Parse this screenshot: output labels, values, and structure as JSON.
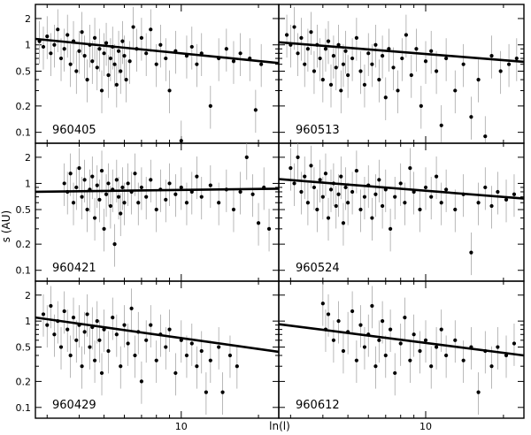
{
  "chart_data": [
    {
      "type": "scatter",
      "panel_label": "960405",
      "x_log": true,
      "y_log": true,
      "xlim": [
        2.7,
        24
      ],
      "ylim": [
        0.075,
        2.9
      ],
      "fit_line": {
        "x": [
          2.7,
          24
        ],
        "y": [
          1.17,
          0.62
        ]
      },
      "points": [
        [
          2.8,
          1.1
        ],
        [
          2.9,
          0.95
        ],
        [
          3.0,
          1.25
        ],
        [
          3.1,
          0.8
        ],
        [
          3.2,
          1.0
        ],
        [
          3.3,
          1.5
        ],
        [
          3.4,
          0.7
        ],
        [
          3.5,
          0.9
        ],
        [
          3.6,
          1.3
        ],
        [
          3.7,
          0.6
        ],
        [
          3.8,
          1.1
        ],
        [
          3.9,
          0.5
        ],
        [
          4.0,
          0.85
        ],
        [
          4.1,
          1.4
        ],
        [
          4.2,
          0.75
        ],
        [
          4.3,
          0.4
        ],
        [
          4.4,
          1.0
        ],
        [
          4.5,
          0.65
        ],
        [
          4.6,
          1.2
        ],
        [
          4.7,
          0.55
        ],
        [
          4.8,
          0.9
        ],
        [
          4.9,
          0.3
        ],
        [
          5.0,
          0.8
        ],
        [
          5.1,
          1.05
        ],
        [
          5.2,
          0.45
        ],
        [
          5.3,
          0.7
        ],
        [
          5.4,
          0.95
        ],
        [
          5.5,
          0.6
        ],
        [
          5.6,
          0.35
        ],
        [
          5.7,
          0.85
        ],
        [
          5.8,
          0.5
        ],
        [
          5.9,
          1.1
        ],
        [
          6.0,
          0.75
        ],
        [
          6.1,
          0.4
        ],
        [
          6.3,
          0.65
        ],
        [
          6.5,
          1.6
        ],
        [
          6.7,
          0.9
        ],
        [
          7.0,
          1.2
        ],
        [
          7.3,
          0.8
        ],
        [
          7.6,
          1.5
        ],
        [
          8.0,
          0.6
        ],
        [
          8.3,
          1.0
        ],
        [
          8.7,
          0.7
        ],
        [
          9.0,
          0.3
        ],
        [
          9.5,
          0.85
        ],
        [
          10.0,
          0.08
        ],
        [
          10.5,
          0.75
        ],
        [
          11.0,
          0.95
        ],
        [
          11.5,
          0.6
        ],
        [
          12.0,
          0.8
        ],
        [
          13.0,
          0.2
        ],
        [
          14.0,
          0.7
        ],
        [
          15.0,
          0.9
        ],
        [
          16.0,
          0.65
        ],
        [
          17.0,
          0.8
        ],
        [
          18.5,
          0.7
        ],
        [
          19.5,
          0.18
        ],
        [
          20.5,
          0.6
        ]
      ]
    },
    {
      "type": "scatter",
      "panel_label": "960513",
      "x_log": true,
      "y_log": true,
      "xlim": [
        2.7,
        24
      ],
      "ylim": [
        0.075,
        2.9
      ],
      "fit_line": {
        "x": [
          2.7,
          24
        ],
        "y": [
          1.07,
          0.64
        ]
      },
      "points": [
        [
          2.9,
          1.3
        ],
        [
          3.0,
          1.0
        ],
        [
          3.1,
          1.6
        ],
        [
          3.2,
          0.8
        ],
        [
          3.3,
          1.2
        ],
        [
          3.4,
          0.6
        ],
        [
          3.5,
          0.9
        ],
        [
          3.6,
          1.4
        ],
        [
          3.7,
          0.5
        ],
        [
          3.8,
          1.0
        ],
        [
          3.9,
          0.7
        ],
        [
          4.0,
          0.4
        ],
        [
          4.1,
          0.9
        ],
        [
          4.2,
          1.1
        ],
        [
          4.3,
          0.35
        ],
        [
          4.4,
          0.75
        ],
        [
          4.5,
          0.55
        ],
        [
          4.6,
          1.0
        ],
        [
          4.7,
          0.3
        ],
        [
          4.8,
          0.6
        ],
        [
          4.9,
          0.85
        ],
        [
          5.0,
          0.45
        ],
        [
          5.2,
          0.7
        ],
        [
          5.4,
          1.2
        ],
        [
          5.6,
          0.5
        ],
        [
          5.8,
          0.35
        ],
        [
          6.0,
          0.8
        ],
        [
          6.2,
          0.6
        ],
        [
          6.4,
          1.0
        ],
        [
          6.6,
          0.4
        ],
        [
          6.8,
          0.75
        ],
        [
          7.0,
          0.25
        ],
        [
          7.2,
          0.9
        ],
        [
          7.5,
          0.55
        ],
        [
          7.8,
          0.3
        ],
        [
          8.1,
          0.7
        ],
        [
          8.4,
          1.3
        ],
        [
          8.8,
          0.45
        ],
        [
          9.2,
          0.9
        ],
        [
          9.6,
          0.2
        ],
        [
          10.0,
          0.65
        ],
        [
          10.5,
          0.85
        ],
        [
          11.0,
          0.5
        ],
        [
          11.5,
          0.12
        ],
        [
          12.0,
          0.7
        ],
        [
          13.0,
          0.3
        ],
        [
          14.0,
          0.6
        ],
        [
          15.0,
          0.15
        ],
        [
          16.0,
          0.4
        ],
        [
          17.0,
          0.09
        ],
        [
          18.0,
          0.75
        ],
        [
          19.5,
          0.5
        ],
        [
          21.0,
          0.6
        ],
        [
          22.5,
          0.7
        ]
      ]
    },
    {
      "type": "scatter",
      "panel_label": "960421",
      "x_log": true,
      "y_log": true,
      "xlim": [
        2.7,
        24
      ],
      "ylim": [
        0.075,
        2.9
      ],
      "fit_line": {
        "x": [
          2.7,
          24
        ],
        "y": [
          0.8,
          0.87
        ]
      },
      "points": [
        [
          3.5,
          1.0
        ],
        [
          3.6,
          0.8
        ],
        [
          3.7,
          1.3
        ],
        [
          3.8,
          0.6
        ],
        [
          3.9,
          0.9
        ],
        [
          4.0,
          1.5
        ],
        [
          4.1,
          0.7
        ],
        [
          4.2,
          1.1
        ],
        [
          4.3,
          0.5
        ],
        [
          4.4,
          0.85
        ],
        [
          4.5,
          1.2
        ],
        [
          4.6,
          0.4
        ],
        [
          4.7,
          0.95
        ],
        [
          4.8,
          0.65
        ],
        [
          4.9,
          1.4
        ],
        [
          5.0,
          0.3
        ],
        [
          5.1,
          0.75
        ],
        [
          5.2,
          1.0
        ],
        [
          5.3,
          0.55
        ],
        [
          5.4,
          0.85
        ],
        [
          5.5,
          0.2
        ],
        [
          5.6,
          1.1
        ],
        [
          5.7,
          0.7
        ],
        [
          5.8,
          0.45
        ],
        [
          5.9,
          0.9
        ],
        [
          6.0,
          0.6
        ],
        [
          6.2,
          1.0
        ],
        [
          6.4,
          0.8
        ],
        [
          6.6,
          1.3
        ],
        [
          6.8,
          0.6
        ],
        [
          7.0,
          0.9
        ],
        [
          7.3,
          0.7
        ],
        [
          7.6,
          1.1
        ],
        [
          8.0,
          0.5
        ],
        [
          8.3,
          0.85
        ],
        [
          8.7,
          0.65
        ],
        [
          9.0,
          1.0
        ],
        [
          9.5,
          0.75
        ],
        [
          10.0,
          0.9
        ],
        [
          10.5,
          0.6
        ],
        [
          11.0,
          0.8
        ],
        [
          11.5,
          1.2
        ],
        [
          12.0,
          0.7
        ],
        [
          13.0,
          0.95
        ],
        [
          14.0,
          0.6
        ],
        [
          15.0,
          0.85
        ],
        [
          16.0,
          0.5
        ],
        [
          17.0,
          0.8
        ],
        [
          18.0,
          2.0
        ],
        [
          19.0,
          0.75
        ],
        [
          20.0,
          0.35
        ],
        [
          21.0,
          0.9
        ],
        [
          22.0,
          0.3
        ]
      ]
    },
    {
      "type": "scatter",
      "panel_label": "960524",
      "x_log": true,
      "y_log": true,
      "xlim": [
        2.7,
        24
      ],
      "ylim": [
        0.075,
        2.9
      ],
      "fit_line": {
        "x": [
          2.7,
          24
        ],
        "y": [
          1.12,
          0.67
        ]
      },
      "points": [
        [
          3.0,
          1.5
        ],
        [
          3.1,
          1.0
        ],
        [
          3.2,
          2.0
        ],
        [
          3.3,
          0.8
        ],
        [
          3.4,
          1.2
        ],
        [
          3.5,
          0.6
        ],
        [
          3.6,
          1.6
        ],
        [
          3.7,
          0.9
        ],
        [
          3.8,
          0.5
        ],
        [
          3.9,
          1.1
        ],
        [
          4.0,
          0.7
        ],
        [
          4.1,
          1.3
        ],
        [
          4.2,
          0.4
        ],
        [
          4.3,
          0.85
        ],
        [
          4.4,
          1.0
        ],
        [
          4.5,
          0.55
        ],
        [
          4.6,
          0.75
        ],
        [
          4.7,
          1.2
        ],
        [
          4.8,
          0.35
        ],
        [
          4.9,
          0.9
        ],
        [
          5.0,
          0.6
        ],
        [
          5.2,
          0.8
        ],
        [
          5.4,
          1.4
        ],
        [
          5.6,
          0.5
        ],
        [
          5.8,
          0.7
        ],
        [
          6.0,
          0.95
        ],
        [
          6.2,
          0.4
        ],
        [
          6.4,
          0.75
        ],
        [
          6.6,
          1.1
        ],
        [
          6.8,
          0.55
        ],
        [
          7.0,
          0.85
        ],
        [
          7.3,
          0.3
        ],
        [
          7.6,
          0.7
        ],
        [
          8.0,
          1.0
        ],
        [
          8.3,
          0.6
        ],
        [
          8.7,
          1.5
        ],
        [
          9.0,
          0.8
        ],
        [
          9.5,
          0.5
        ],
        [
          10.0,
          0.9
        ],
        [
          10.5,
          0.7
        ],
        [
          11.0,
          1.2
        ],
        [
          11.5,
          0.6
        ],
        [
          12.0,
          0.85
        ],
        [
          13.0,
          0.5
        ],
        [
          14.0,
          0.75
        ],
        [
          15.0,
          0.16
        ],
        [
          16.0,
          0.6
        ],
        [
          17.0,
          0.9
        ],
        [
          18.0,
          0.55
        ],
        [
          19.0,
          0.8
        ],
        [
          20.5,
          0.65
        ],
        [
          22.0,
          0.75
        ]
      ]
    },
    {
      "type": "scatter",
      "panel_label": "960429",
      "x_log": true,
      "y_log": true,
      "xlim": [
        2.7,
        24
      ],
      "ylim": [
        0.075,
        2.9
      ],
      "fit_line": {
        "x": [
          2.7,
          24
        ],
        "y": [
          1.1,
          0.44
        ]
      },
      "points": [
        [
          2.9,
          1.2
        ],
        [
          3.0,
          0.9
        ],
        [
          3.1,
          1.5
        ],
        [
          3.2,
          0.7
        ],
        [
          3.3,
          1.0
        ],
        [
          3.4,
          0.5
        ],
        [
          3.5,
          1.3
        ],
        [
          3.6,
          0.8
        ],
        [
          3.7,
          0.4
        ],
        [
          3.8,
          1.1
        ],
        [
          3.9,
          0.6
        ],
        [
          4.0,
          0.9
        ],
        [
          4.1,
          0.3
        ],
        [
          4.2,
          0.75
        ],
        [
          4.3,
          1.2
        ],
        [
          4.4,
          0.5
        ],
        [
          4.5,
          0.85
        ],
        [
          4.6,
          0.35
        ],
        [
          4.7,
          1.0
        ],
        [
          4.8,
          0.6
        ],
        [
          4.9,
          0.25
        ],
        [
          5.0,
          0.8
        ],
        [
          5.2,
          0.45
        ],
        [
          5.4,
          1.1
        ],
        [
          5.6,
          0.7
        ],
        [
          5.8,
          0.3
        ],
        [
          6.0,
          0.9
        ],
        [
          6.2,
          0.55
        ],
        [
          6.4,
          1.4
        ],
        [
          6.6,
          0.4
        ],
        [
          6.8,
          0.75
        ],
        [
          7.0,
          0.2
        ],
        [
          7.3,
          0.6
        ],
        [
          7.6,
          0.9
        ],
        [
          8.0,
          0.35
        ],
        [
          8.3,
          0.7
        ],
        [
          8.7,
          0.5
        ],
        [
          9.0,
          0.8
        ],
        [
          9.5,
          0.25
        ],
        [
          10.0,
          0.6
        ],
        [
          10.5,
          0.4
        ],
        [
          11.0,
          0.55
        ],
        [
          11.5,
          0.3
        ],
        [
          12.0,
          0.45
        ],
        [
          12.5,
          0.15
        ],
        [
          13.0,
          0.35
        ],
        [
          14.0,
          0.5
        ],
        [
          14.5,
          0.15
        ],
        [
          15.5,
          0.4
        ],
        [
          16.5,
          0.3
        ]
      ]
    },
    {
      "type": "scatter",
      "panel_label": "960612",
      "x_log": true,
      "y_log": true,
      "xlim": [
        2.7,
        24
      ],
      "ylim": [
        0.075,
        2.9
      ],
      "fit_line": {
        "x": [
          2.7,
          24
        ],
        "y": [
          0.92,
          0.4
        ]
      },
      "points": [
        [
          4.0,
          1.6
        ],
        [
          4.1,
          0.8
        ],
        [
          4.2,
          1.2
        ],
        [
          4.4,
          0.6
        ],
        [
          4.6,
          1.0
        ],
        [
          4.8,
          0.45
        ],
        [
          5.0,
          0.75
        ],
        [
          5.2,
          1.3
        ],
        [
          5.4,
          0.35
        ],
        [
          5.6,
          0.9
        ],
        [
          5.8,
          0.5
        ],
        [
          6.0,
          0.7
        ],
        [
          6.2,
          1.5
        ],
        [
          6.4,
          0.3
        ],
        [
          6.6,
          0.6
        ],
        [
          6.8,
          1.0
        ],
        [
          7.0,
          0.4
        ],
        [
          7.3,
          0.8
        ],
        [
          7.6,
          0.25
        ],
        [
          8.0,
          0.55
        ],
        [
          8.3,
          1.1
        ],
        [
          8.7,
          0.35
        ],
        [
          9.0,
          0.7
        ],
        [
          9.5,
          0.45
        ],
        [
          10.0,
          0.6
        ],
        [
          10.5,
          0.3
        ],
        [
          11.0,
          0.5
        ],
        [
          11.5,
          0.8
        ],
        [
          12.0,
          0.4
        ],
        [
          13.0,
          0.6
        ],
        [
          14.0,
          0.35
        ],
        [
          15.0,
          0.5
        ],
        [
          16.0,
          0.15
        ],
        [
          17.0,
          0.45
        ],
        [
          18.0,
          0.3
        ],
        [
          19.0,
          0.5
        ],
        [
          20.5,
          0.4
        ],
        [
          22.0,
          0.55
        ]
      ]
    }
  ],
  "axes": {
    "ylabel": "s (AU)",
    "xlabel": "ln(l)",
    "y_ticks": [
      "0.1",
      "0.2",
      "0.5",
      "1",
      "2"
    ],
    "x_ticks": [
      "10",
      "10"
    ]
  }
}
